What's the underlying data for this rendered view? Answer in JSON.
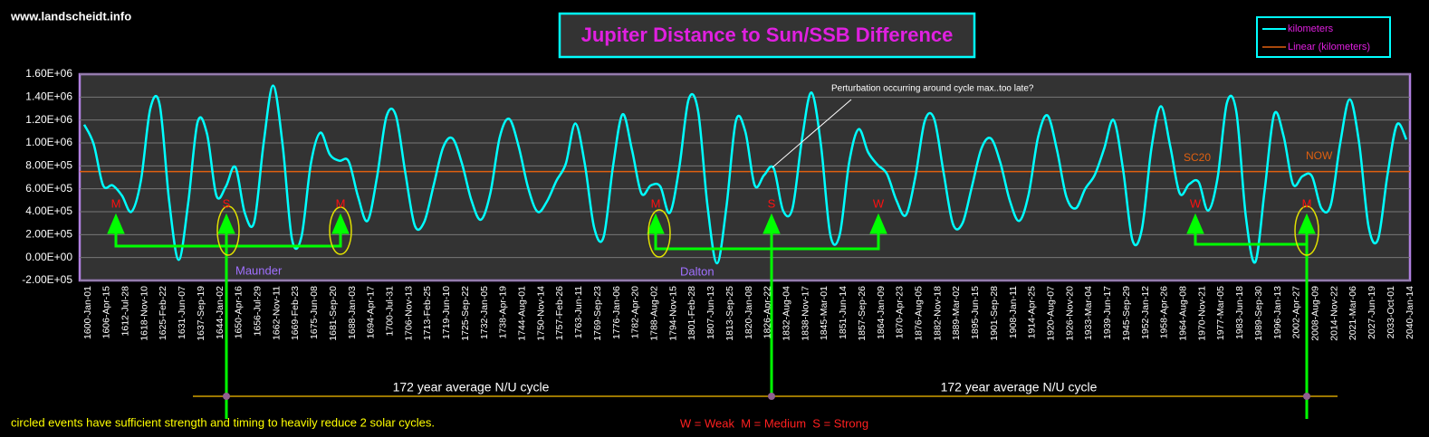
{
  "chart_data": {
    "type": "line",
    "title": "Jupiter Distance to Sun/SSB Difference",
    "source": "www.landscheidt.info",
    "categories": [
      "1600-Jan-01",
      null,
      "1606-Apr-15",
      null,
      "1612-Jul-28",
      null,
      "1618-Nov-10",
      null,
      "1625-Feb-22",
      null,
      "1631-Jun-07",
      null,
      "1637-Sep-19",
      null,
      "1644-Jan-02",
      null,
      "1650-Apr-16",
      null,
      "1656-Jul-29",
      null,
      "1662-Nov-11",
      null,
      "1669-Feb-23",
      null,
      "1675-Jun-08",
      null,
      "1681-Sep-20",
      null,
      "1688-Jan-03",
      null,
      "1694-Apr-17",
      null,
      "1700-Jul-31",
      null,
      "1706-Nov-13",
      null,
      "1713-Feb-25",
      null,
      "1719-Jun-10",
      null,
      "1725-Sep-22",
      null,
      "1732-Jan-05",
      null,
      "1738-Apr-19",
      null,
      "1744-Aug-01",
      null,
      "1750-Nov-14",
      null,
      "1757-Feb-26",
      null,
      "1763-Jun-11",
      null,
      "1769-Sep-23",
      null,
      "1776-Jan-06",
      null,
      "1782-Apr-20",
      null,
      "1788-Aug-02",
      null,
      "1794-Nov-15",
      null,
      "1801-Feb-28",
      null,
      "1807-Jun-13",
      null,
      "1813-Sep-25",
      null,
      "1820-Jan-08",
      null,
      "1826-Apr-22",
      null,
      "1832-Aug-04",
      null,
      "1838-Nov-17",
      null,
      "1845-Mar-01",
      null,
      "1851-Jun-14",
      null,
      "1857-Sep-26",
      null,
      "1864-Jan-09",
      null,
      "1870-Apr-23",
      null,
      "1876-Aug-05",
      null,
      "1882-Nov-18",
      null,
      "1889-Mar-02",
      null,
      "1895-Jun-15",
      null,
      "1901-Sep-28",
      null,
      "1908-Jan-11",
      null,
      "1914-Apr-25",
      null,
      "1920-Aug-07",
      null,
      "1926-Nov-20",
      null,
      "1933-Mar-04",
      null,
      "1939-Jun-17",
      null,
      "1945-Sep-29",
      null,
      "1952-Jan-12",
      null,
      "1958-Apr-26",
      null,
      "1964-Aug-08",
      null,
      "1970-Nov-21",
      null,
      "1977-Mar-05",
      null,
      "1983-Jun-18",
      null,
      "1989-Sep-30",
      null,
      "1996-Jan-13",
      null,
      "2002-Apr-27",
      null,
      "2008-Aug-09",
      null,
      "2014-Nov-22",
      null,
      "2021-Mar-06",
      null,
      "2027-Jun-19",
      null,
      "2033-Oct-01",
      null,
      "2040-Jan-14"
    ],
    "series": [
      {
        "name": "kilometers",
        "color": "#00ffff",
        "values": [
          1160000,
          990000,
          630000,
          630000,
          540000,
          400000,
          670000,
          1300000,
          1330000,
          490000,
          -20000,
          470000,
          1180000,
          1080000,
          540000,
          620000,
          790000,
          390000,
          310000,
          1000000,
          1500000,
          990000,
          160000,
          180000,
          820000,
          1090000,
          900000,
          845000,
          840000,
          530000,
          320000,
          700000,
          1230000,
          1240000,
          740000,
          280000,
          310000,
          630000,
          960000,
          1040000,
          820000,
          500000,
          330000,
          560000,
          1050000,
          1210000,
          970000,
          610000,
          400000,
          490000,
          670000,
          820000,
          1170000,
          820000,
          260000,
          180000,
          800000,
          1250000,
          940000,
          560000,
          630000,
          620000,
          390000,
          780000,
          1380000,
          1280000,
          450000,
          -50000,
          440000,
          1190000,
          1100000,
          630000,
          720000,
          780000,
          410000,
          430000,
          1030000,
          1440000,
          990000,
          200000,
          200000,
          830000,
          1120000,
          920000,
          810000,
          730000,
          500000,
          370000,
          700000,
          1190000,
          1210000,
          740000,
          290000,
          300000,
          620000,
          950000,
          1040000,
          830000,
          500000,
          320000,
          550000,
          1050000,
          1240000,
          940000,
          530000,
          430000,
          600000,
          720000,
          950000,
          1200000,
          770000,
          150000,
          250000,
          950000,
          1320000,
          970000,
          560000,
          640000,
          660000,
          410000,
          690000,
          1350000,
          1270000,
          360000,
          -40000,
          590000,
          1250000,
          1060000,
          640000,
          710000,
          710000,
          430000,
          460000,
          1000000,
          1380000,
          1000000,
          270000,
          160000,
          720000,
          1160000,
          1030000
        ]
      }
    ],
    "trendline": {
      "name": "Linear (kilometers)",
      "color": "#e06010",
      "start": 750000,
      "end": 750000
    },
    "ylim": [
      -200000,
      1600000
    ],
    "yticks": [
      {
        "value": -200000,
        "label": "-2.00E+05"
      },
      {
        "value": 0,
        "label": "0.00E+00"
      },
      {
        "value": 200000,
        "label": "2.00E+05"
      },
      {
        "value": 400000,
        "label": "4.00E+05"
      },
      {
        "value": 600000,
        "label": "6.00E+05"
      },
      {
        "value": 800000,
        "label": "8.00E+05"
      },
      {
        "value": 1000000,
        "label": "1.00E+06"
      },
      {
        "value": 1200000,
        "label": "1.20E+06"
      },
      {
        "value": 1400000,
        "label": "1.40E+06"
      },
      {
        "value": 1600000,
        "label": "1.60E+06"
      }
    ],
    "grid": true,
    "legend": "top-right",
    "markers": [
      "M",
      "S",
      "M",
      "M",
      "S",
      "W",
      "W",
      "M"
    ],
    "annotations": [
      "Perturbation occurring around cycle max..too late?",
      "SC20",
      "NOW",
      "Maunder",
      "Dalton",
      "172 year average N/U cycle",
      "172 year average N/U cycle",
      "circled events have sufficient strength and timing to heavily reduce 2 solar cycles.",
      "W = Weak  M = Medium  S = Strong"
    ]
  }
}
